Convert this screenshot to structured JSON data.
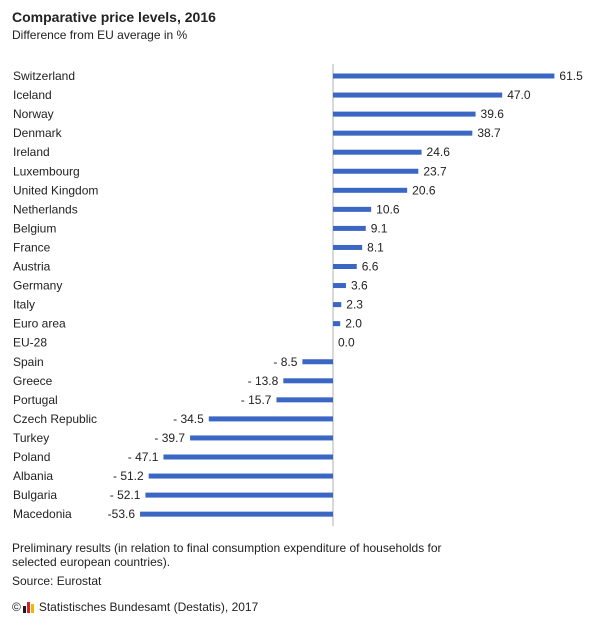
{
  "header": {
    "title": "Comparative price levels, 2016",
    "subtitle": "Difference from EU average in %"
  },
  "footer": {
    "note": "Preliminary results (in relation to final consumption expenditure of households for selected european countries).",
    "source": "Source: Eurostat",
    "copyright_symbol": "©",
    "publisher": "Statistisches Bundesamt (Destatis), 2017",
    "logo_icon": "destatis-logo-icon"
  },
  "chart_data": {
    "type": "bar",
    "orientation": "horizontal",
    "bar_color": "#3a66c4",
    "axis_color": "#b0b0b0",
    "title": "Comparative price levels, 2016",
    "subtitle": "Difference from EU average in %",
    "categories": [
      "Switzerland",
      "Iceland",
      "Norway",
      "Denmark",
      "Ireland",
      "Luxembourg",
      "United Kingdom",
      "Netherlands",
      "Belgium",
      "France",
      "Austria",
      "Germany",
      "Italy",
      "Euro area",
      "EU-28",
      "Spain",
      "Greece",
      "Portugal",
      "Czech Republic",
      "Turkey",
      "Poland",
      "Albania",
      "Bulgaria",
      "Macedonia"
    ],
    "values": [
      61.5,
      47.0,
      39.6,
      38.7,
      24.6,
      23.7,
      20.6,
      10.6,
      9.1,
      8.1,
      6.6,
      3.6,
      2.3,
      2.0,
      0.0,
      -8.5,
      -13.8,
      -15.7,
      -34.5,
      -39.7,
      -47.1,
      -51.2,
      -52.1,
      -53.6
    ],
    "value_labels": [
      "61.5",
      "47.0",
      "39.6",
      "38.7",
      "24.6",
      "23.7",
      "20.6",
      "10.6",
      "9.1",
      "8.1",
      "6.6",
      "3.6",
      "2.3",
      "2.0",
      "0.0",
      "- 8.5",
      "- 13.8",
      "- 15.7",
      "- 34.5",
      "- 39.7",
      "- 47.1",
      "- 51.2",
      "- 52.1",
      "-53.6"
    ]
  }
}
